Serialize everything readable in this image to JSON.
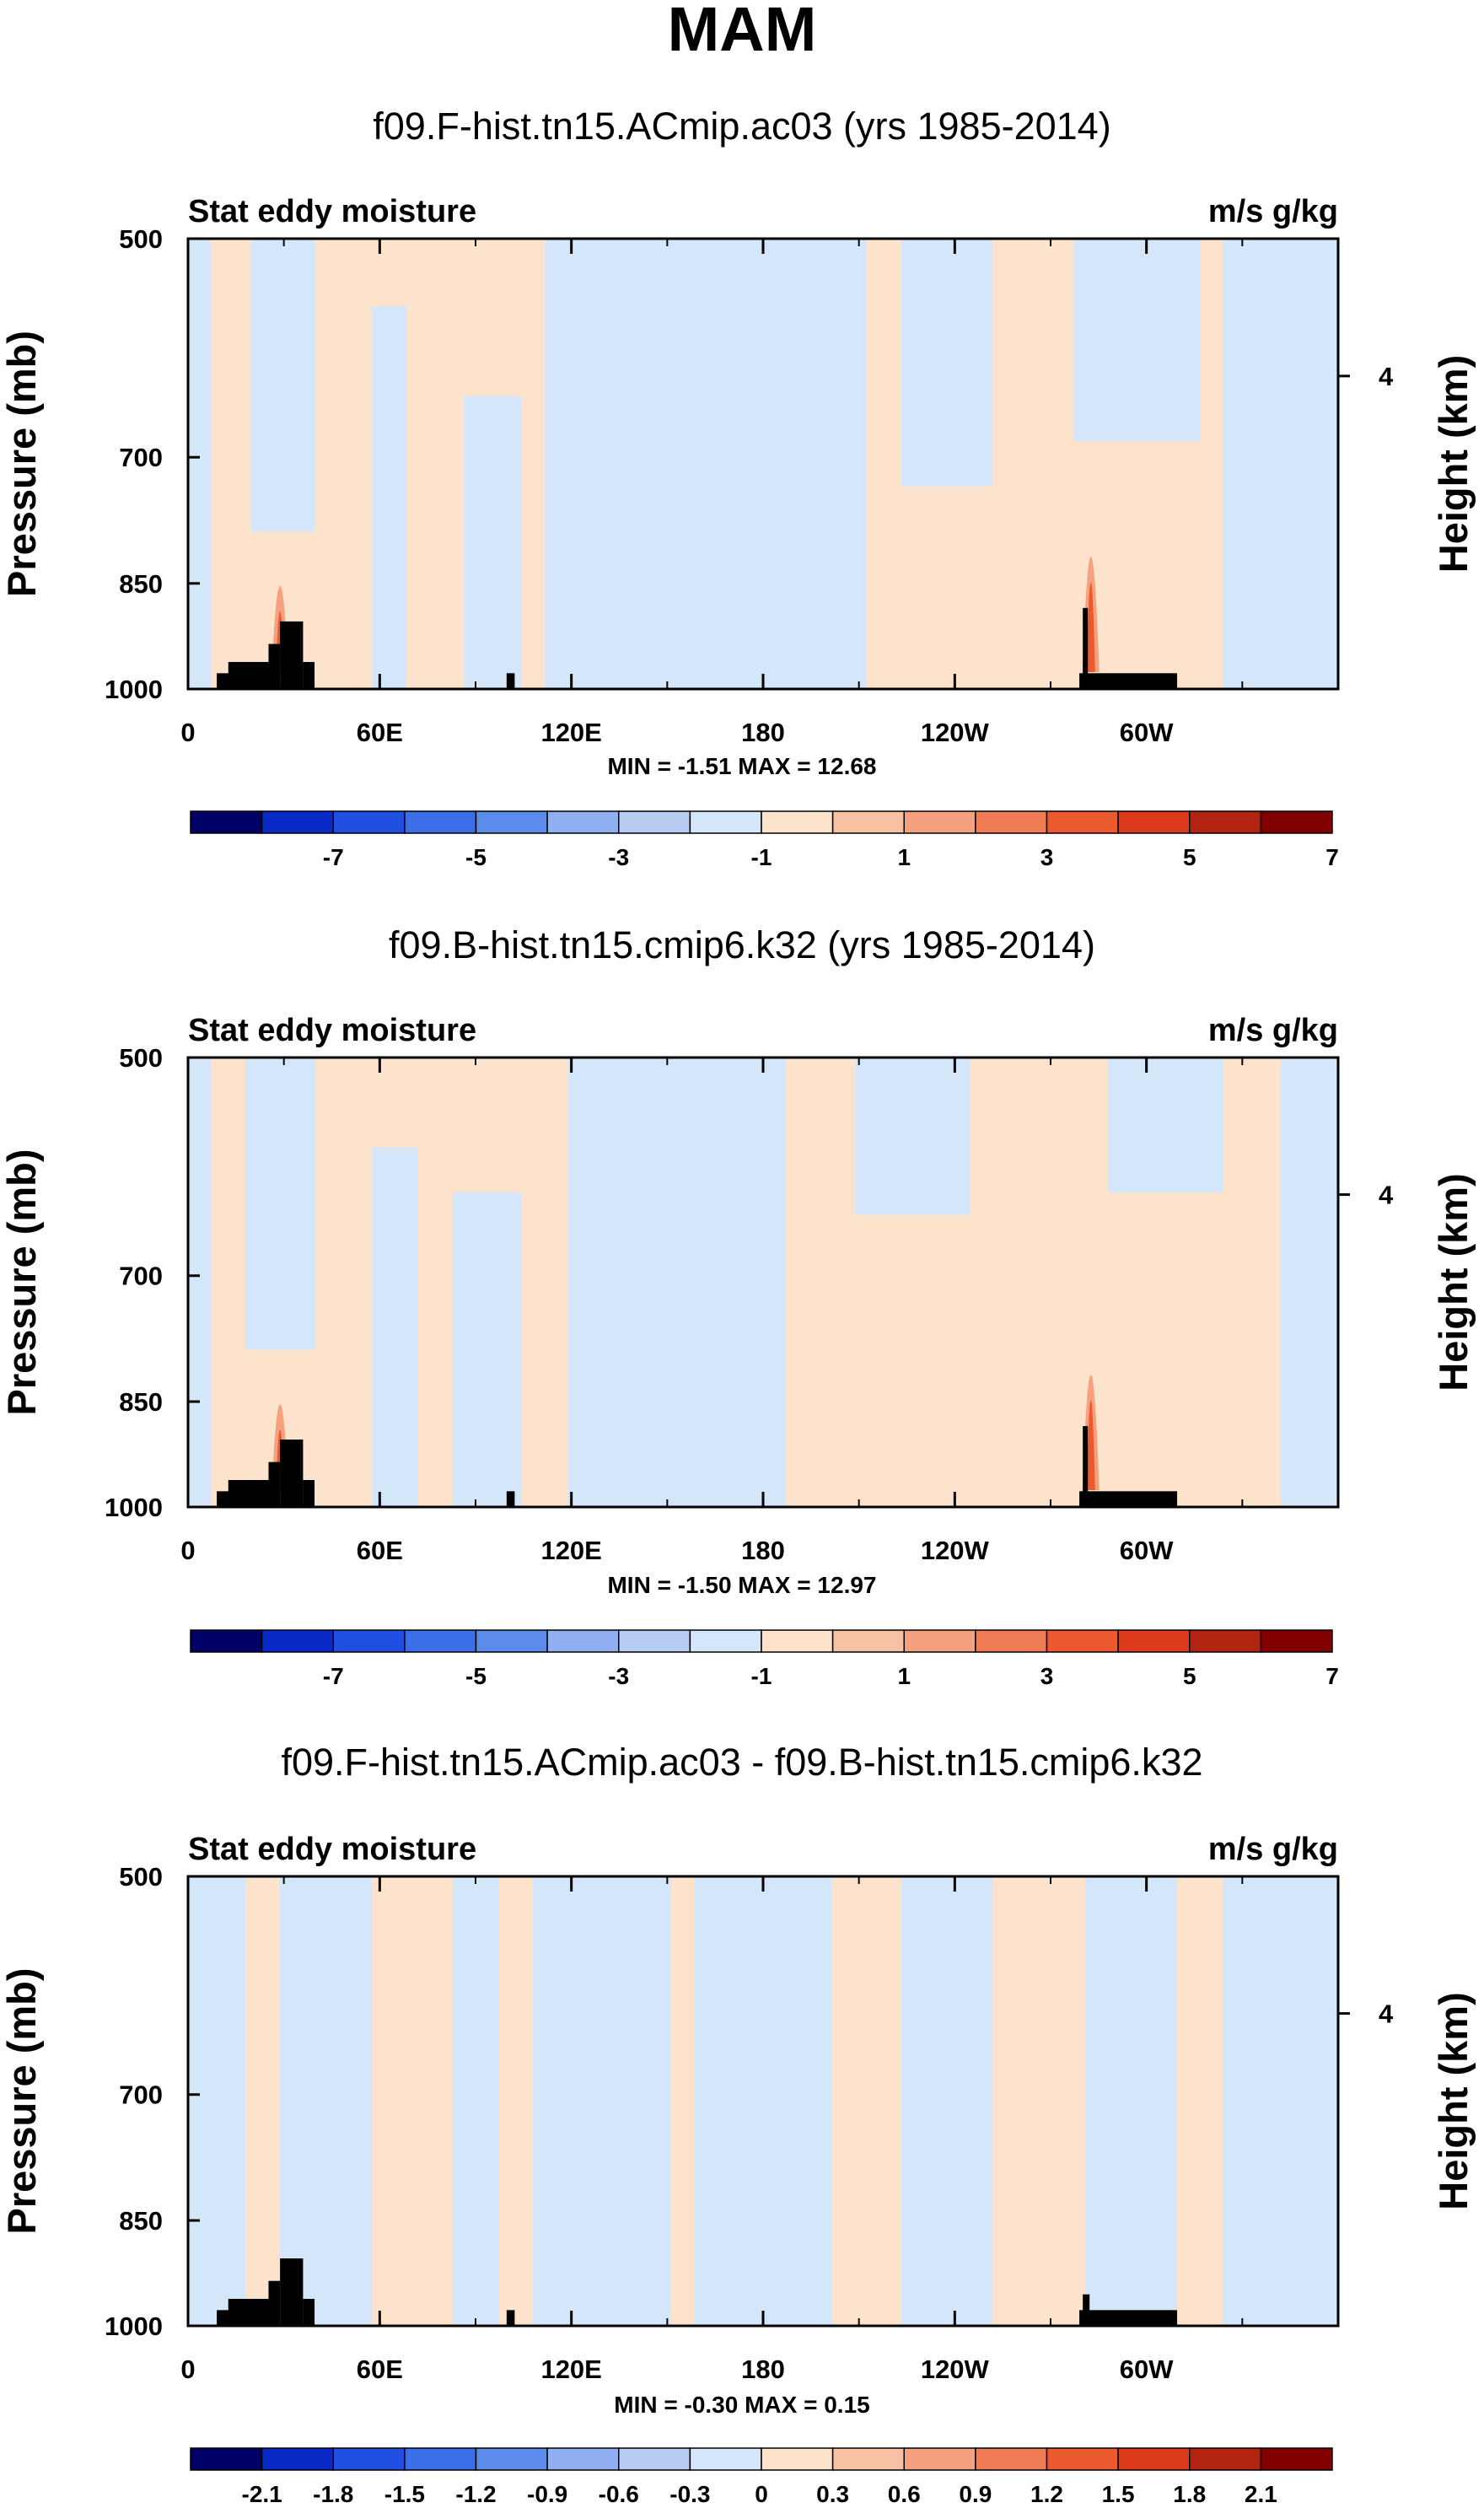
{
  "figure_title": "MAM",
  "chart_data": [
    {
      "type": "contour",
      "title": "f09.F-hist.tn15.ACmip.ac03 (yrs 1985-2014)",
      "left_label": "Stat eddy moisture",
      "right_label": "m/s g/kg",
      "ylabel": "Pressure (mb)",
      "ylabel_right": "Height (km)",
      "x_ticks": [
        "0",
        "60E",
        "120E",
        "180",
        "120W",
        "60W"
      ],
      "x_tick_values": [
        0,
        60,
        120,
        180,
        240,
        300
      ],
      "xlim": [
        0,
        360
      ],
      "y_ticks": [
        "500",
        "700",
        "850",
        "1000"
      ],
      "y_tick_values": [
        500,
        700,
        850,
        1000
      ],
      "ylim": [
        1000,
        500
      ],
      "right_ticks": [
        "4"
      ],
      "stats": "MIN = -1.51  MAX = 12.68",
      "min": -1.51,
      "max": 12.68,
      "colorbar_labels": [
        "-7",
        "-5",
        "-3",
        "-1",
        "1",
        "3",
        "5",
        "7"
      ],
      "colorbar_colors": [
        "#000066",
        "#0a2ac8",
        "#1e4fe0",
        "#3a6fe8",
        "#5b8cec",
        "#8faff0",
        "#b7cdf4",
        "#d4e6fa",
        "#fde3cc",
        "#f9c1a3",
        "#f5a07f",
        "#f07c55",
        "#eb5a2f",
        "#dc3a1a",
        "#b02410",
        "#800000"
      ]
    },
    {
      "type": "contour",
      "title": "f09.B-hist.tn15.cmip6.k32 (yrs 1985-2014)",
      "left_label": "Stat eddy moisture",
      "right_label": "m/s g/kg",
      "ylabel": "Pressure (mb)",
      "ylabel_right": "Height (km)",
      "x_ticks": [
        "0",
        "60E",
        "120E",
        "180",
        "120W",
        "60W"
      ],
      "x_tick_values": [
        0,
        60,
        120,
        180,
        240,
        300
      ],
      "xlim": [
        0,
        360
      ],
      "y_ticks": [
        "500",
        "700",
        "850",
        "1000"
      ],
      "y_tick_values": [
        500,
        700,
        850,
        1000
      ],
      "ylim": [
        1000,
        500
      ],
      "right_ticks": [
        "4"
      ],
      "stats": "MIN = -1.50  MAX = 12.97",
      "min": -1.5,
      "max": 12.97,
      "colorbar_labels": [
        "-7",
        "-5",
        "-3",
        "-1",
        "1",
        "3",
        "5",
        "7"
      ],
      "colorbar_colors": [
        "#000066",
        "#0a2ac8",
        "#1e4fe0",
        "#3a6fe8",
        "#5b8cec",
        "#8faff0",
        "#b7cdf4",
        "#d4e6fa",
        "#fde3cc",
        "#f9c1a3",
        "#f5a07f",
        "#f07c55",
        "#eb5a2f",
        "#dc3a1a",
        "#b02410",
        "#800000"
      ]
    },
    {
      "type": "contour",
      "title": "f09.F-hist.tn15.ACmip.ac03 - f09.B-hist.tn15.cmip6.k32",
      "left_label": "Stat eddy moisture",
      "right_label": "m/s g/kg",
      "ylabel": "Pressure (mb)",
      "ylabel_right": "Height (km)",
      "x_ticks": [
        "0",
        "60E",
        "120E",
        "180",
        "120W",
        "60W"
      ],
      "x_tick_values": [
        0,
        60,
        120,
        180,
        240,
        300
      ],
      "xlim": [
        0,
        360
      ],
      "y_ticks": [
        "500",
        "700",
        "850",
        "1000"
      ],
      "y_tick_values": [
        500,
        700,
        850,
        1000
      ],
      "ylim": [
        1000,
        500
      ],
      "right_ticks": [
        "4"
      ],
      "stats": "MIN = -0.30  MAX =  0.15",
      "min": -0.3,
      "max": 0.15,
      "colorbar_labels": [
        "-2.1",
        "-1.8",
        "-1.5",
        "-1.2",
        "-0.9",
        "-0.6",
        "-0.3",
        "0",
        "0.3",
        "0.6",
        "0.9",
        "1.2",
        "1.5",
        "1.8",
        "2.1"
      ],
      "colorbar_colors": [
        "#000066",
        "#0a2ac8",
        "#1e4fe0",
        "#3a6fe8",
        "#5b8cec",
        "#8faff0",
        "#b7cdf4",
        "#d4e6fa",
        "#fde3cc",
        "#f9c1a3",
        "#f5a07f",
        "#f07c55",
        "#eb5a2f",
        "#dc3a1a",
        "#b02410",
        "#800000"
      ]
    }
  ]
}
